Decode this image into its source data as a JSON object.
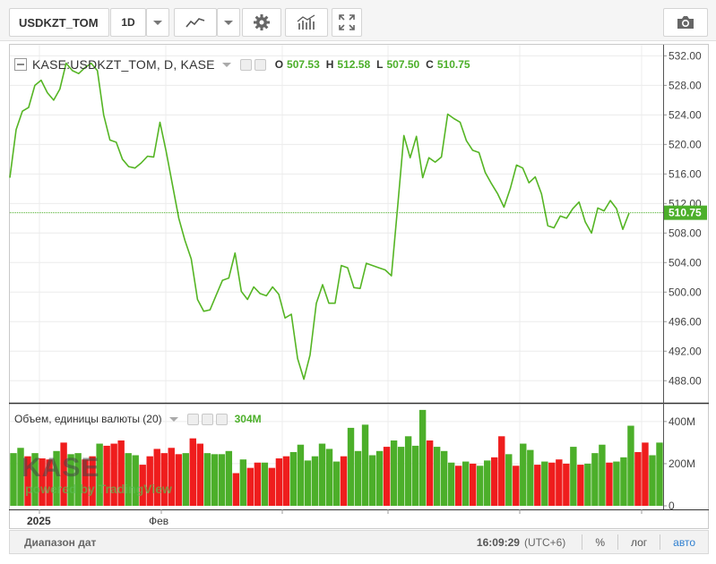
{
  "toolbar": {
    "symbol": "USDKZT_TOM",
    "interval": "1D",
    "icons": [
      "chevron-down-icon",
      "line-chart-icon",
      "gear-icon",
      "indicators-icon",
      "fullscreen-icon",
      "camera-icon"
    ]
  },
  "legend": {
    "symbol": "KASE:USDKZT_TOM, D, KASE",
    "o_label": "O",
    "o": "507.53",
    "h_label": "H",
    "h": "512.58",
    "l_label": "L",
    "l": "507.50",
    "c_label": "C",
    "c": "510.75"
  },
  "volume_legend": {
    "label": "Объем, единицы валюты (20)",
    "value": "304M"
  },
  "watermark": {
    "brand": "KASE",
    "powered": "powered by TradingView"
  },
  "status": {
    "date_range": "Диапазон дат",
    "time": "16:09:29",
    "tz": "(UTC+6)",
    "percent": "%",
    "log": "лог",
    "auto": "авто"
  },
  "colors": {
    "line": "#55b524",
    "up": "#4caf2a",
    "down": "#ef1d1d",
    "last": "#4caf2a"
  },
  "chart_data": [
    {
      "type": "line",
      "series": [
        {
          "values": [
            515.5,
            522,
            524.5,
            525,
            528,
            528.7,
            527,
            526,
            527.5,
            531,
            530,
            529.6,
            530.4,
            531,
            530,
            524,
            520.6,
            520.3,
            518,
            517,
            516.8,
            517.5,
            518.4,
            518.3,
            523,
            519,
            514.5,
            510,
            507,
            504.5,
            499,
            497.4,
            497.6,
            499.6,
            501.6,
            501.9,
            505.3,
            500.1,
            499,
            500.7,
            499.8,
            499.5,
            500.7,
            499.7,
            496.5,
            497,
            491,
            488.2,
            491.5,
            498.5,
            501,
            498.5,
            498.5,
            503.6,
            503.3,
            500.6,
            500.5,
            503.9,
            503.6,
            503.3,
            503,
            502.2,
            511.5,
            521.2,
            518.2,
            521.1,
            515.5,
            518.2,
            517.6,
            518.3,
            524.1,
            523.5,
            523,
            520.5,
            519.2,
            518.9,
            516.2,
            514.7,
            513.3,
            511.5,
            514,
            517.2,
            516.8,
            514.8,
            515.6,
            513.3,
            509,
            508.7,
            510.3,
            510,
            511.3,
            512.2,
            509.5,
            508,
            511.4,
            511,
            512.4,
            511.3,
            508.5,
            510.7
          ]
        }
      ],
      "x_ticks": [
        "2025",
        "Фев"
      ],
      "y_ticks": [
        "532.00",
        "528.00",
        "524.00",
        "520.00",
        "516.00",
        "512.00",
        "508.00",
        "504.00",
        "500.00",
        "496.00",
        "492.00",
        "488.00"
      ],
      "ylim": [
        485,
        533.5
      ],
      "last_value": "510.75",
      "grid": true
    },
    {
      "type": "bar",
      "series": [
        {
          "values": [
            250,
            275,
            235,
            250,
            225,
            220,
            260,
            300,
            245,
            250,
            220,
            235,
            295,
            285,
            295,
            310,
            250,
            240,
            195,
            235,
            270,
            250,
            275,
            245,
            250,
            320,
            295,
            250,
            245,
            245,
            260,
            155,
            220,
            180,
            205,
            205,
            180,
            225,
            235,
            255,
            290,
            215,
            235,
            295,
            270,
            210,
            235,
            370,
            260,
            385,
            240,
            260,
            280,
            310,
            280,
            330,
            285,
            455,
            310,
            280,
            260,
            205,
            190,
            210,
            200,
            190,
            215,
            230,
            330,
            245,
            190,
            295,
            265,
            195,
            210,
            205,
            220,
            200,
            280,
            195,
            200,
            250,
            290,
            205,
            210,
            230,
            380,
            255,
            300,
            240,
            300
          ],
          "directions": [
            "u",
            "u",
            "d",
            "u",
            "d",
            "d",
            "u",
            "d",
            "u",
            "u",
            "d",
            "d",
            "u",
            "d",
            "d",
            "d",
            "u",
            "u",
            "d",
            "d",
            "d",
            "d",
            "d",
            "d",
            "u",
            "d",
            "d",
            "u",
            "u",
            "u",
            "u",
            "d",
            "u",
            "d",
            "d",
            "u",
            "d",
            "d",
            "d",
            "u",
            "u",
            "u",
            "u",
            "u",
            "u",
            "u",
            "d",
            "u",
            "u",
            "u",
            "u",
            "u",
            "d",
            "u",
            "u",
            "u",
            "u",
            "u",
            "d",
            "u",
            "u",
            "u",
            "d",
            "u",
            "d",
            "u",
            "u",
            "d",
            "d",
            "u",
            "d",
            "u",
            "u",
            "d",
            "u",
            "d",
            "d",
            "d",
            "u",
            "d",
            "u",
            "u",
            "u",
            "d",
            "u",
            "u",
            "u",
            "d",
            "d",
            "u",
            "u"
          ]
        }
      ],
      "y_ticks": [
        "400M",
        "200M",
        "0"
      ],
      "ylim": [
        0,
        480
      ]
    }
  ]
}
